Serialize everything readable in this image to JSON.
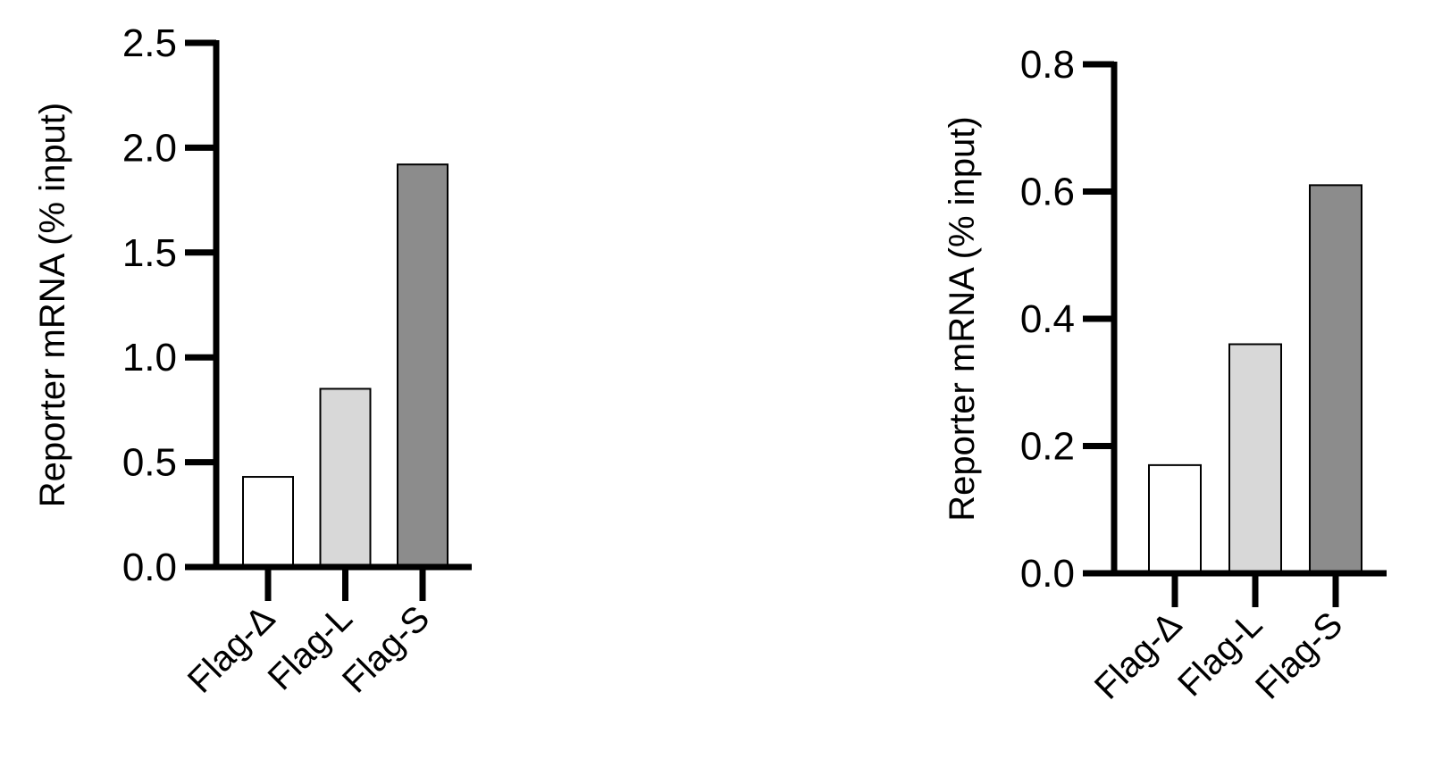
{
  "chart_data": [
    {
      "type": "bar",
      "categories": [
        "Flag-Δ",
        "Flag-L",
        "Flag-S"
      ],
      "values": [
        0.43,
        0.85,
        1.92
      ],
      "colors": [
        "#ffffff",
        "#d8d8d8",
        "#8c8c8c"
      ],
      "title": "",
      "xlabel": "",
      "ylabel": "Reporter mRNA (% input)",
      "ylim": [
        0,
        2.5
      ],
      "yticks": [
        "0.0",
        "0.5",
        "1.0",
        "1.5",
        "2.0",
        "2.5"
      ],
      "grid": false
    },
    {
      "type": "bar",
      "categories": [
        "Flag-Δ",
        "Flag-L",
        "Flag-S"
      ],
      "values": [
        0.17,
        0.36,
        0.61
      ],
      "colors": [
        "#ffffff",
        "#d8d8d8",
        "#8c8c8c"
      ],
      "title": "",
      "xlabel": "",
      "ylabel": "Reporter mRNA (% input)",
      "ylim": [
        0,
        0.8
      ],
      "yticks": [
        "0.0",
        "0.2",
        "0.4",
        "0.6",
        "0.8"
      ],
      "grid": false
    }
  ]
}
